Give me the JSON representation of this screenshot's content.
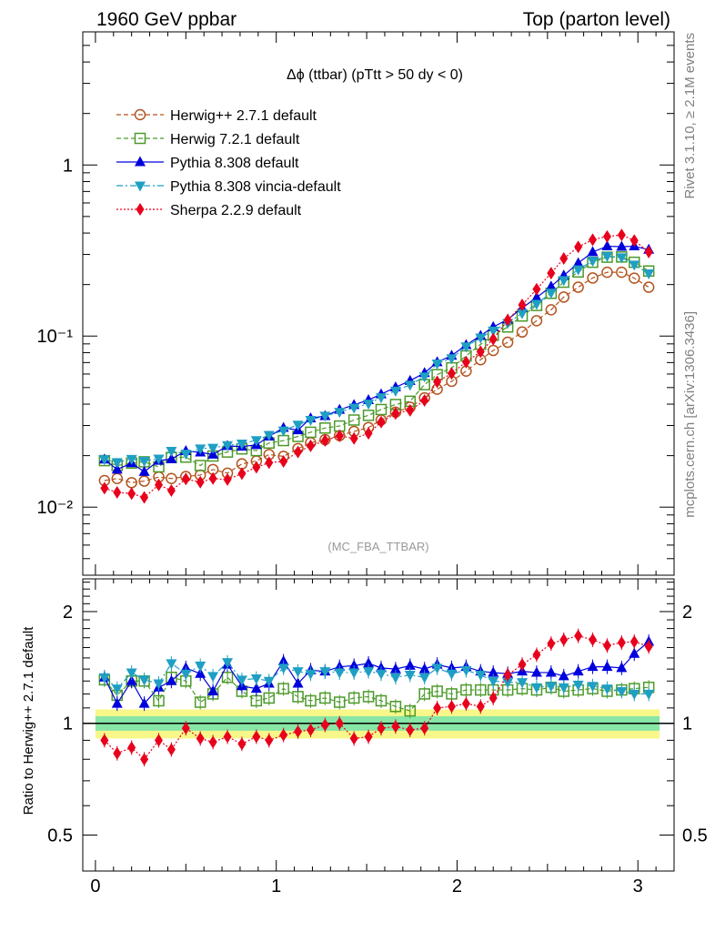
{
  "header": {
    "left": "1960 GeV ppbar",
    "right": "Top (parton level)"
  },
  "side_labels": {
    "top": "Rivet 3.1.10, ≥ 2.1M events",
    "bottom": "mcplots.cern.ch [arXiv:1306.3436]"
  },
  "plot_title": "Δϕ (ttbar) (pTtt > 50 dy < 0)",
  "watermark": "(MC_FBA_TTBAR)",
  "ratio_ylabel": "Ratio to Herwig++ 2.7.1 default",
  "colors": {
    "herwigpp": "#b3541e",
    "herwig7": "#4c9a2a",
    "pythia": "#0000dd",
    "vincia": "#1f9fc4",
    "sherpa": "#e8001c",
    "band_inner": "#88e6a6",
    "band_outer": "#f7f78a"
  },
  "chart_data": [
    {
      "type": "line",
      "panel": "main",
      "title": "Δϕ (ttbar) (pTtt > 50 dy < 0)",
      "xlim": [
        -0.07,
        3.2
      ],
      "ylim": [
        0.004,
        6
      ],
      "yscale": "log",
      "yticks": [
        {
          "value": 0.01,
          "label": "10⁻²"
        },
        {
          "value": 0.1,
          "label": "10⁻¹"
        },
        {
          "value": 1,
          "label": "1"
        }
      ],
      "legend_position": "top-left",
      "x": [
        0.05,
        0.12,
        0.2,
        0.27,
        0.35,
        0.42,
        0.5,
        0.58,
        0.65,
        0.73,
        0.81,
        0.89,
        0.96,
        1.04,
        1.12,
        1.19,
        1.27,
        1.35,
        1.43,
        1.51,
        1.58,
        1.66,
        1.74,
        1.82,
        1.89,
        1.97,
        2.05,
        2.13,
        2.2,
        2.28,
        2.36,
        2.44,
        2.52,
        2.59,
        2.67,
        2.75,
        2.83,
        2.91,
        2.98,
        3.06
      ],
      "series": [
        {
          "name": "Herwig++ 2.7.1 default",
          "key": "herwigpp",
          "marker": "open-circle",
          "style": "dashed",
          "values": [
            0.0143,
            0.0147,
            0.0139,
            0.0142,
            0.015,
            0.0147,
            0.0151,
            0.0154,
            0.0166,
            0.0158,
            0.0179,
            0.0186,
            0.0203,
            0.0198,
            0.022,
            0.0238,
            0.0248,
            0.0262,
            0.0277,
            0.0292,
            0.0323,
            0.0359,
            0.0384,
            0.0435,
            0.0489,
            0.0544,
            0.0624,
            0.0727,
            0.0824,
            0.092,
            0.1056,
            0.123,
            0.1424,
            0.169,
            0.193,
            0.2185,
            0.236,
            0.236,
            0.218,
            0.193
          ]
        },
        {
          "name": "Herwig 7.2.1 default",
          "key": "herwig7",
          "marker": "open-square",
          "style": "dashed",
          "values": [
            0.0187,
            0.0175,
            0.0181,
            0.0184,
            0.0172,
            0.0195,
            0.0196,
            0.0175,
            0.0199,
            0.021,
            0.0219,
            0.0214,
            0.0237,
            0.0245,
            0.0259,
            0.0274,
            0.029,
            0.0298,
            0.0323,
            0.0344,
            0.0372,
            0.0398,
            0.0416,
            0.052,
            0.0595,
            0.0652,
            0.0766,
            0.0895,
            0.101,
            0.113,
            0.131,
            0.151,
            0.1778,
            0.2065,
            0.237,
            0.27,
            0.289,
            0.29,
            0.27,
            0.24
          ]
        },
        {
          "name": "Pythia 8.308 default",
          "key": "pythia",
          "marker": "filled-triangle-up",
          "style": "solid",
          "values": [
            0.019,
            0.0166,
            0.0181,
            0.0161,
            0.0187,
            0.0191,
            0.0213,
            0.0209,
            0.0203,
            0.0228,
            0.0226,
            0.0231,
            0.0259,
            0.0291,
            0.0282,
            0.0331,
            0.0341,
            0.0371,
            0.0396,
            0.0423,
            0.0457,
            0.0502,
            0.0548,
            0.0609,
            0.0704,
            0.0768,
            0.0887,
            0.1005,
            0.113,
            0.125,
            0.146,
            0.168,
            0.195,
            0.226,
            0.267,
            0.31,
            0.335,
            0.333,
            0.335,
            0.32
          ]
        },
        {
          "name": "Pythia 8.308 vincia-default",
          "key": "vincia",
          "marker": "filled-triangle-down",
          "style": "dashdot",
          "values": [
            0.019,
            0.0183,
            0.0191,
            0.0186,
            0.0192,
            0.0213,
            0.0205,
            0.022,
            0.0222,
            0.023,
            0.0235,
            0.0246,
            0.0264,
            0.028,
            0.0303,
            0.0323,
            0.0342,
            0.036,
            0.0381,
            0.0402,
            0.0438,
            0.0479,
            0.0518,
            0.058,
            0.069,
            0.0741,
            0.0868,
            0.0978,
            0.1075,
            0.119,
            0.136,
            0.154,
            0.179,
            0.212,
            0.245,
            0.275,
            0.293,
            0.288,
            0.261,
            0.232
          ]
        },
        {
          "name": "Sherpa 2.2.9 default",
          "key": "sherpa",
          "marker": "filled-diamond",
          "style": "dotted",
          "values": [
            0.0129,
            0.0122,
            0.012,
            0.0114,
            0.0135,
            0.0125,
            0.0146,
            0.014,
            0.0147,
            0.0145,
            0.0157,
            0.0171,
            0.0182,
            0.0185,
            0.021,
            0.0228,
            0.0245,
            0.0261,
            0.0252,
            0.027,
            0.0314,
            0.0353,
            0.0368,
            0.042,
            0.054,
            0.0605,
            0.0705,
            0.081,
            0.096,
            0.124,
            0.152,
            0.188,
            0.233,
            0.284,
            0.332,
            0.366,
            0.382,
            0.39,
            0.362,
            0.31
          ]
        }
      ]
    },
    {
      "type": "line",
      "panel": "ratio",
      "ylabel": "Ratio to Herwig++ 2.7.1 default",
      "xlim": [
        -0.07,
        3.2
      ],
      "ylim": [
        0.4,
        2.45
      ],
      "yscale": "log",
      "xticks": [
        {
          "value": 0,
          "label": "0"
        },
        {
          "value": 1,
          "label": "1"
        },
        {
          "value": 2,
          "label": "2"
        },
        {
          "value": 3,
          "label": "3"
        }
      ],
      "yticks": [
        {
          "value": 0.5,
          "label": "0.5"
        },
        {
          "value": 1,
          "label": "1"
        },
        {
          "value": 2,
          "label": "2"
        }
      ],
      "reference_band": {
        "inner_half_width": 0.045,
        "outer_half_width": 0.09
      },
      "x": [
        0.05,
        0.12,
        0.2,
        0.27,
        0.35,
        0.42,
        0.5,
        0.58,
        0.65,
        0.73,
        0.81,
        0.89,
        0.96,
        1.04,
        1.12,
        1.19,
        1.27,
        1.35,
        1.43,
        1.51,
        1.58,
        1.66,
        1.74,
        1.82,
        1.89,
        1.97,
        2.05,
        2.13,
        2.2,
        2.28,
        2.36,
        2.44,
        2.52,
        2.59,
        2.67,
        2.75,
        2.83,
        2.91,
        2.98,
        3.06
      ],
      "series": [
        {
          "name": "Herwig 7.2.1 default",
          "key": "herwig7",
          "values": [
            1.31,
            1.19,
            1.3,
            1.3,
            1.15,
            1.33,
            1.3,
            1.14,
            1.2,
            1.33,
            1.22,
            1.15,
            1.17,
            1.24,
            1.18,
            1.15,
            1.17,
            1.14,
            1.17,
            1.18,
            1.15,
            1.11,
            1.08,
            1.2,
            1.22,
            1.2,
            1.23,
            1.23,
            1.23,
            1.23,
            1.24,
            1.23,
            1.25,
            1.22,
            1.23,
            1.24,
            1.22,
            1.23,
            1.24,
            1.25
          ]
        },
        {
          "name": "Pythia 8.308 default",
          "key": "pythia",
          "values": [
            1.33,
            1.13,
            1.3,
            1.13,
            1.25,
            1.3,
            1.41,
            1.36,
            1.22,
            1.44,
            1.26,
            1.24,
            1.28,
            1.47,
            1.28,
            1.39,
            1.38,
            1.42,
            1.43,
            1.45,
            1.41,
            1.4,
            1.43,
            1.4,
            1.44,
            1.41,
            1.42,
            1.38,
            1.37,
            1.36,
            1.38,
            1.37,
            1.37,
            1.34,
            1.38,
            1.42,
            1.42,
            1.41,
            1.54,
            1.66
          ]
        },
        {
          "name": "Pythia 8.308 vincia-default",
          "key": "vincia",
          "values": [
            1.33,
            1.24,
            1.37,
            1.31,
            1.28,
            1.45,
            1.36,
            1.43,
            1.34,
            1.46,
            1.31,
            1.32,
            1.3,
            1.41,
            1.38,
            1.36,
            1.38,
            1.37,
            1.37,
            1.38,
            1.36,
            1.33,
            1.35,
            1.33,
            1.41,
            1.36,
            1.39,
            1.35,
            1.3,
            1.29,
            1.29,
            1.25,
            1.26,
            1.25,
            1.27,
            1.26,
            1.24,
            1.22,
            1.2,
            1.2
          ]
        },
        {
          "name": "Sherpa 2.2.9 default",
          "key": "sherpa",
          "values": [
            0.9,
            0.83,
            0.86,
            0.8,
            0.9,
            0.85,
            0.97,
            0.91,
            0.89,
            0.92,
            0.88,
            0.92,
            0.9,
            0.93,
            0.95,
            0.96,
            0.99,
            1.0,
            0.91,
            0.92,
            0.97,
            0.98,
            0.96,
            0.97,
            1.1,
            1.11,
            1.13,
            1.11,
            1.17,
            1.35,
            1.44,
            1.53,
            1.64,
            1.68,
            1.72,
            1.68,
            1.62,
            1.65,
            1.66,
            1.61
          ]
        }
      ]
    }
  ]
}
